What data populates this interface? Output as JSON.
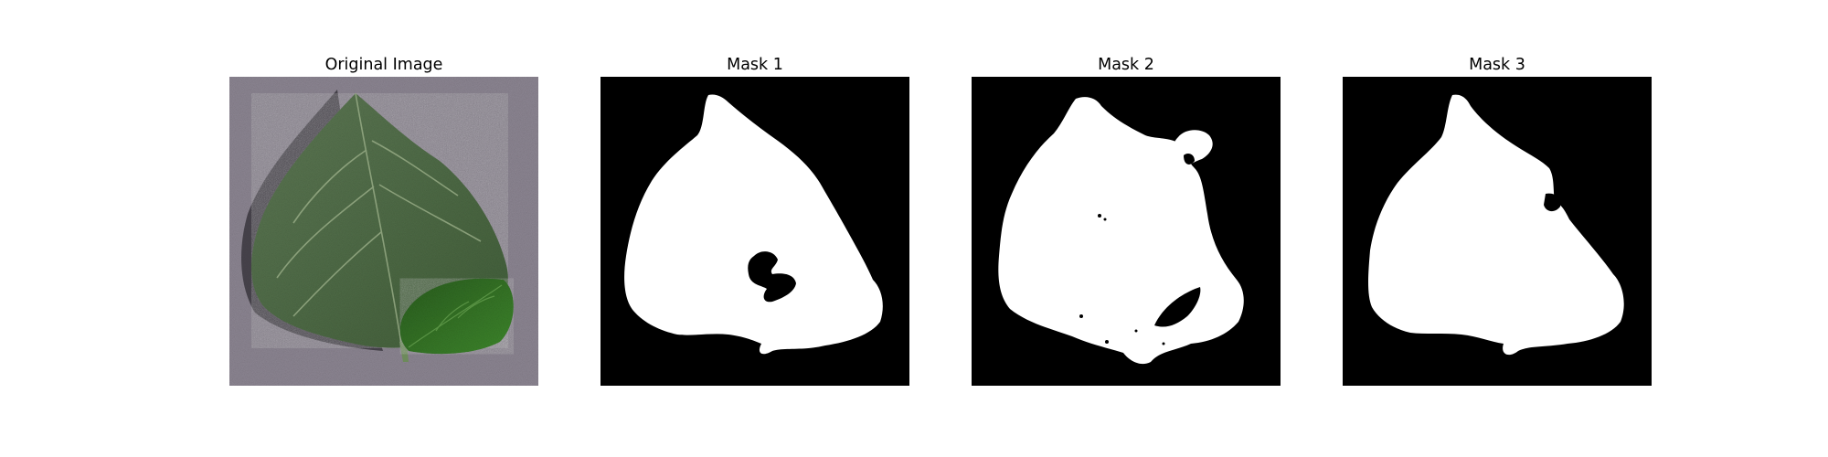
{
  "figure": {
    "panels": [
      {
        "title": "Original Image",
        "kind": "photo"
      },
      {
        "title": "Mask 1",
        "kind": "mask"
      },
      {
        "title": "Mask 2",
        "kind": "mask"
      },
      {
        "title": "Mask 3",
        "kind": "mask"
      }
    ],
    "colors": {
      "background": "#ffffff",
      "mask_foreground": "#ffffff",
      "mask_background": "#000000",
      "leaf_green": "#4f6b45",
      "small_leaf_green": "#2f6a22",
      "surface_gray": "#8e8794"
    }
  }
}
